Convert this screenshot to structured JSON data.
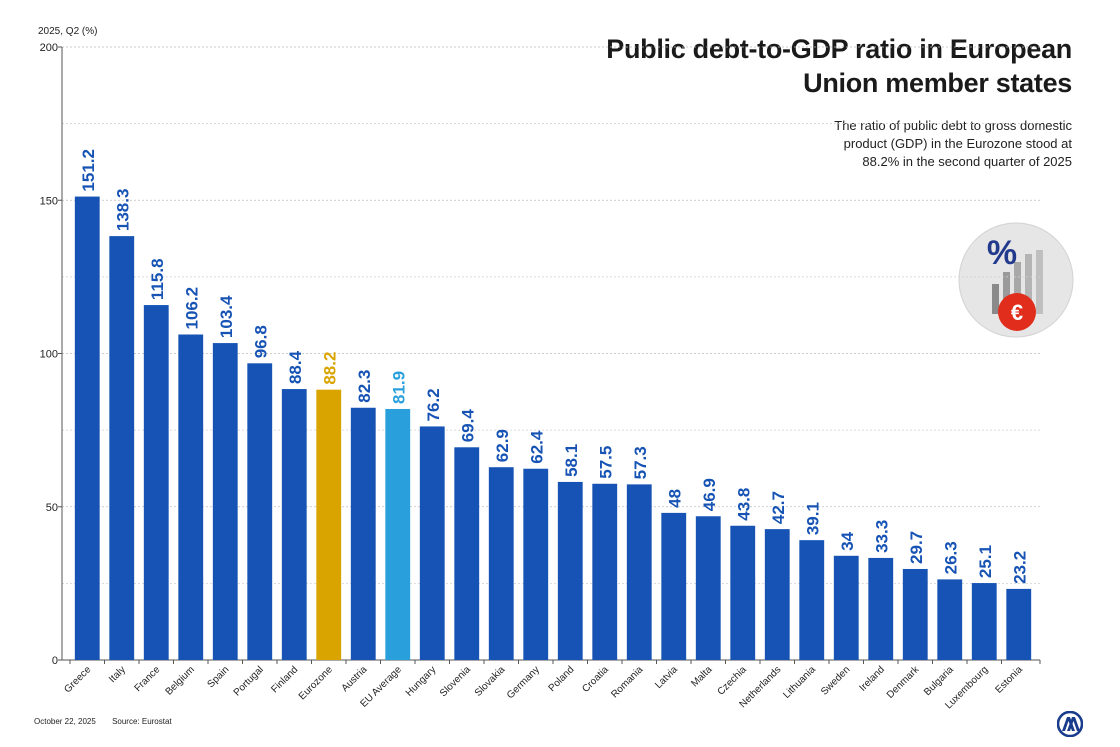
{
  "header": {
    "title_line1": "Public debt-to-GDP ratio in European",
    "title_line2": "Union member states",
    "subtitle_line1": "The ratio of public debt to gross domestic",
    "subtitle_line2": "product (GDP) in the Eurozone stood at",
    "subtitle_line3": "88.2% in the second quarter of 2025"
  },
  "unit_label": "2025, Q2 (%)",
  "footer": {
    "date": "October 22, 2025",
    "source": "Source: Eurostat"
  },
  "emblem": {
    "percent_symbol": "%",
    "euro_symbol": "€"
  },
  "colors": {
    "bar_default": "#1653b4",
    "bar_eurozone": "#d9a400",
    "bar_eu_average": "#29a0dc",
    "label_default": "#1653b4",
    "label_eurozone": "#d9a400",
    "label_eu_average": "#29a0dc"
  },
  "chart_data": {
    "type": "bar",
    "ylim": [
      0,
      200
    ],
    "yticks": [
      0,
      50,
      100,
      150,
      200
    ],
    "grid": true,
    "categories": [
      "Greece",
      "Italy",
      "France",
      "Belgium",
      "Spain",
      "Portugal",
      "Finland",
      "Eurozone",
      "Austria",
      "EU Average",
      "Hungary",
      "Slovenia",
      "Slovakia",
      "Germany",
      "Poland",
      "Croatia",
      "Romania",
      "Latvia",
      "Malta",
      "Czechia",
      "Netherlands",
      "Lithuania",
      "Sweden",
      "Ireland",
      "Denmark",
      "Bulgaria",
      "Luxembourg",
      "Estonia"
    ],
    "values": [
      151.2,
      138.3,
      115.8,
      106.2,
      103.4,
      96.8,
      88.4,
      88.2,
      82.3,
      81.9,
      76.2,
      69.4,
      62.9,
      62.4,
      58.1,
      57.5,
      57.3,
      48,
      46.9,
      43.8,
      42.7,
      39.1,
      34,
      33.3,
      29.7,
      26.3,
      25.1,
      23.2
    ],
    "value_labels": [
      "151.2",
      "138.3",
      "115.8",
      "106.2",
      "103.4",
      "96.8",
      "88.4",
      "88.2",
      "82.3",
      "81.9",
      "76.2",
      "69.4",
      "62.9",
      "62.4",
      "58.1",
      "57.5",
      "57.3",
      "48",
      "46.9",
      "43.8",
      "42.7",
      "39.1",
      "34",
      "33.3",
      "29.7",
      "26.3",
      "25.1",
      "23.2"
    ],
    "highlight": {
      "Eurozone": "bar_eurozone",
      "EU Average": "bar_eu_average"
    }
  }
}
